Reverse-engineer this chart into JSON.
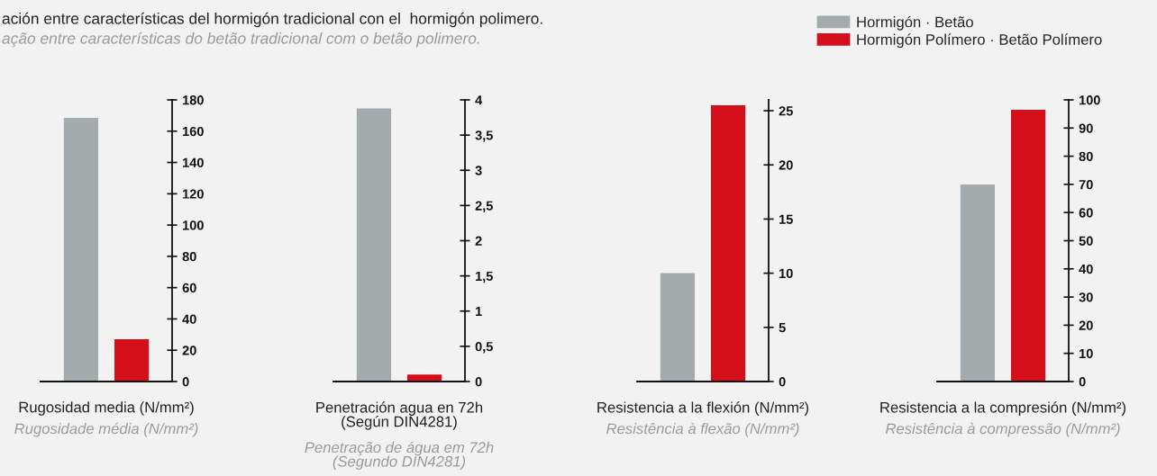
{
  "chart_data": [
    {
      "type": "bar",
      "title": "ación entre características del hormigón tradicional con el  hormigón polimero.",
      "subtitle": "ação entre características do betão tradicional com o betão polimero.",
      "categories": [
        null,
        null
      ],
      "xlabel": "Rugosidad media (N/mm²)",
      "annotations": [
        "Rugosidade média (N/mm²)"
      ],
      "series": [
        {
          "color": "#a5abad",
          "values": [
            168.5,
            null
          ]
        },
        {
          "color": "#d40f1a",
          "values": [
            null,
            27
          ]
        }
      ],
      "ylim": [
        0,
        180
      ],
      "yticks": [
        0,
        20,
        40,
        60,
        80,
        100,
        120,
        140,
        160,
        180
      ],
      "tick_labels": "y",
      "grid": false,
      "legend": false
    },
    {
      "type": "bar",
      "categories": [
        null,
        null
      ],
      "xlabel": "Penetración agua en 72h\n(Según DIN4281)",
      "annotations": [
        "Penetração de água em 72h\n(Segundo DIN4281)"
      ],
      "series": [
        {
          "color": "#a5abad",
          "values": [
            3.88,
            null
          ]
        },
        {
          "color": "#d40f1a",
          "values": [
            null,
            0.1
          ]
        }
      ],
      "ylim": [
        0,
        4
      ],
      "yticks": [
        0,
        {
          "value": 0.5,
          "label": "0,5"
        },
        1,
        {
          "value": 1.5,
          "label": "1,5"
        },
        2,
        {
          "value": 2.5,
          "label": "2,5"
        },
        3,
        {
          "value": 3.5,
          "label": "3,5"
        },
        4
      ],
      "tick_labels": "y",
      "grid": false,
      "legend": false
    },
    {
      "type": "bar",
      "categories": [
        null,
        null
      ],
      "xlabel": "Resistencia a la flexión (N/mm²)",
      "annotations": [
        "Resistência à flexão (N/mm²)"
      ],
      "series": [
        {
          "color": "#a5abad",
          "values": [
            10,
            null
          ]
        },
        {
          "color": "#d40f1a",
          "values": [
            null,
            25.5
          ]
        }
      ],
      "ylim": [
        0,
        26
      ],
      "yticks": [
        0,
        5,
        10,
        15,
        20,
        25
      ],
      "tick_labels": "y",
      "grid": false,
      "legend": false
    },
    {
      "type": "bar",
      "categories": [
        null,
        null
      ],
      "xlabel": "Resistencia a la compresión (N/mm²)",
      "annotations": [
        "Resistência à compressão (N/mm²)"
      ],
      "series": [
        {
          "name": "Hormigón · Betão",
          "color": "#a5abad",
          "values": [
            70,
            null
          ]
        },
        {
          "name": "Hormigón Polímero · Betão Polímero",
          "color": "#d40f1a",
          "values": [
            null,
            96.5
          ]
        }
      ],
      "ylim": [
        0,
        100
      ],
      "yticks": [
        0,
        10,
        20,
        30,
        40,
        50,
        60,
        70,
        80,
        90,
        100
      ],
      "tick_labels": "y",
      "grid": false,
      "legend": "top left"
    }
  ]
}
